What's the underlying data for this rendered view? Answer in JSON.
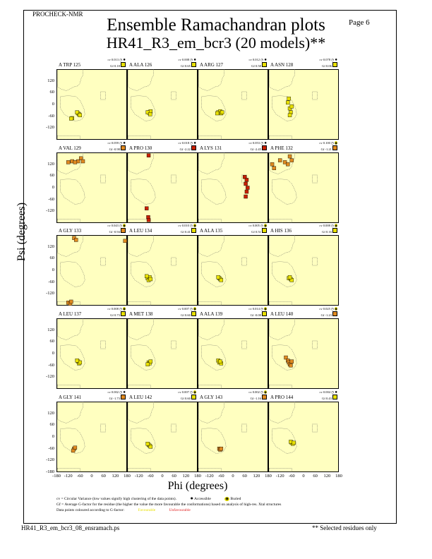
{
  "header": {
    "program": "PROCHECK-NMR",
    "page": "Page  6",
    "title": "Ensemble Ramachandran plots",
    "subtitle": "HR41_R3_em_bcr3 (20 models)**"
  },
  "axes": {
    "xlabel": "Phi (degrees)",
    "ylabel": "Psi (degrees)",
    "xticks": [
      "-180",
      "-120",
      "-60",
      "0",
      "60",
      "120",
      "180"
    ],
    "yticks": [
      "120",
      "60",
      "0",
      "-60",
      "-120"
    ],
    "ybottom": "-180"
  },
  "colors": {
    "background": "#ffffc0",
    "favourable": "#e8e000",
    "moderate": "#e08a20",
    "unfavourable": "#c82000"
  },
  "panels": [
    {
      "label": "A TRP 125",
      "cv": "cv 0.013",
      "gf": "Gf 0.18",
      "access": "accessible",
      "pts": [
        [
          -70,
          -45
        ],
        [
          -65,
          -50
        ],
        [
          -75,
          -40
        ],
        [
          -60,
          -55
        ],
        [
          -100,
          -70
        ],
        [
          -105,
          -72
        ]
      ]
    },
    {
      "label": "A ALA 126",
      "cv": "cv 0.008",
      "gf": "Gf 0.65",
      "access": "accessible",
      "pts": [
        [
          -70,
          -40
        ],
        [
          -65,
          -45
        ],
        [
          -60,
          -35
        ],
        [
          -75,
          -40
        ],
        [
          -62,
          -50
        ]
      ]
    },
    {
      "label": "A ARG 127",
      "cv": "cv 0.012",
      "gf": "Gf 0.58",
      "access": "accessible",
      "pts": [
        [
          -75,
          -40
        ],
        [
          -65,
          -35
        ],
        [
          -60,
          -45
        ],
        [
          -80,
          -45
        ],
        [
          -55,
          -40
        ]
      ]
    },
    {
      "label": "A ASN 128",
      "cv": "cv 0.078",
      "gf": "Gf 0.06",
      "access": "accessible",
      "pts": [
        [
          -75,
          30
        ],
        [
          -80,
          10
        ],
        [
          -70,
          -20
        ],
        [
          -65,
          -40
        ],
        [
          -70,
          -55
        ],
        [
          -60,
          -10
        ]
      ]
    },
    {
      "label": "A VAL 129",
      "cv": "cv 0.059",
      "gf": "Gf -0.98",
      "access": "accessible",
      "pts": [
        [
          -120,
          130
        ],
        [
          -100,
          135
        ],
        [
          -70,
          135
        ],
        [
          -55,
          150
        ],
        [
          -45,
          135
        ],
        [
          -85,
          130
        ]
      ]
    },
    {
      "label": "A PRO 130",
      "cv": "cv 0.018",
      "gf": "Gf -2.22",
      "access": "accessible",
      "pts": [
        [
          -70,
          165
        ],
        [
          -80,
          -105
        ],
        [
          -72,
          -150
        ],
        [
          -70,
          -165
        ]
      ]
    },
    {
      "label": "A LYS 131",
      "cv": "cv 0.053",
      "gf": "Gf -2.45",
      "access": "accessible",
      "pts": [
        [
          60,
          55
        ],
        [
          70,
          40
        ],
        [
          65,
          20
        ],
        [
          75,
          0
        ],
        [
          70,
          -20
        ],
        [
          65,
          -45
        ]
      ]
    },
    {
      "label": "A PHE 132",
      "cv": "cv 0.100",
      "gf": "Gf -1.21",
      "access": "buried",
      "pts": [
        [
          -160,
          120
        ],
        [
          -150,
          100
        ],
        [
          -120,
          140
        ],
        [
          -95,
          130
        ],
        [
          -80,
          120
        ],
        [
          -70,
          160
        ],
        [
          -60,
          140
        ]
      ]
    },
    {
      "label": "A GLY 133",
      "cv": "cv 0.043",
      "gf": "Gf -0.94",
      "access": "buried",
      "pts": [
        [
          -90,
          165
        ],
        [
          -80,
          155
        ],
        [
          170,
          150
        ],
        [
          -120,
          -165
        ],
        [
          -110,
          -170
        ],
        [
          -105,
          -160
        ]
      ]
    },
    {
      "label": "A LEU 134",
      "cv": "cv 0.010",
      "gf": "Gf 0.41",
      "access": "buried",
      "pts": [
        [
          -75,
          -40
        ],
        [
          -70,
          -50
        ],
        [
          -65,
          -35
        ],
        [
          -60,
          -45
        ],
        [
          -80,
          -30
        ]
      ]
    },
    {
      "label": "A ALA 135",
      "cv": "cv 0.005",
      "gf": "Gf 0.51",
      "access": "buried",
      "pts": [
        [
          -70,
          -40
        ],
        [
          -65,
          -45
        ],
        [
          -60,
          -50
        ],
        [
          -75,
          -35
        ]
      ]
    },
    {
      "label": "A HIS 136",
      "cv": "cv 0.008",
      "gf": "Gf 0.16",
      "access": "buried",
      "pts": [
        [
          -75,
          -40
        ],
        [
          -65,
          -45
        ],
        [
          -60,
          -50
        ],
        [
          -70,
          -35
        ]
      ]
    },
    {
      "label": "A LEU 137",
      "cv": "cv 0.008",
      "gf": "Gf 0.73",
      "access": "buried",
      "pts": [
        [
          -70,
          -40
        ],
        [
          -65,
          -50
        ],
        [
          -60,
          -45
        ],
        [
          -75,
          -35
        ]
      ]
    },
    {
      "label": "A MET 138",
      "cv": "cv 0.007",
      "gf": "Gf 0.60",
      "access": "buried",
      "pts": [
        [
          -70,
          -45
        ],
        [
          -65,
          -50
        ],
        [
          -60,
          -40
        ],
        [
          -75,
          -55
        ]
      ]
    },
    {
      "label": "A ALA 139",
      "cv": "cv 0.014",
      "gf": "Gf -0.08",
      "access": "buried",
      "pts": [
        [
          -75,
          -35
        ],
        [
          -70,
          -45
        ],
        [
          -60,
          -50
        ],
        [
          -65,
          -40
        ]
      ]
    },
    {
      "label": "A LEU 140",
      "cv": "cv 0.025",
      "gf": "Gf -1.23",
      "access": "buried",
      "pts": [
        [
          -90,
          -20
        ],
        [
          -80,
          -35
        ],
        [
          -75,
          -45
        ],
        [
          -70,
          -55
        ],
        [
          -65,
          -60
        ],
        [
          -60,
          -40
        ]
      ]
    },
    {
      "label": "A GLY 141",
      "cv": "cv 0.002",
      "gf": "Gf -1.73",
      "access": "accessible",
      "pts": [
        [
          -90,
          -60
        ],
        [
          -95,
          -70
        ],
        [
          -85,
          -55
        ]
      ]
    },
    {
      "label": "A LEU 142",
      "cv": "cv 0.007",
      "gf": "Gf 0.60",
      "access": "buried",
      "pts": [
        [
          -70,
          -40
        ],
        [
          -65,
          -45
        ],
        [
          -60,
          -50
        ],
        [
          -75,
          -35
        ]
      ]
    },
    {
      "label": "A GLY 143",
      "cv": "cv 0.002",
      "gf": "Gf -1.16",
      "access": "buried",
      "pts": [
        [
          -70,
          -60
        ],
        [
          -65,
          -65
        ],
        [
          -60,
          -60
        ]
      ]
    },
    {
      "label": "A PRO 144",
      "cv": "cv 0.004",
      "gf": "Gf 0.43",
      "access": "accessible",
      "pts": [
        [
          -60,
          -30
        ],
        [
          -55,
          -35
        ],
        [
          -65,
          -25
        ],
        [
          -50,
          -30
        ]
      ]
    }
  ],
  "legend": {
    "line1": "cv = Circular Variance (low values signify high clustering of the data points).",
    "accessible": "Accessible",
    "buried": "Buried",
    "line2": "Gf = Average G-factor for the residue (the higher the value the more favourable the conformations) based on analysis of high-res. Xtal structures",
    "line3": "Data points coloured according to G-factor:",
    "favourable": "Favourable",
    "unfavourable": "Unfavourable"
  },
  "footer": {
    "file": "HR41_R3_em_bcr3_08_ensramach.ps",
    "note": "** Selected residues only"
  }
}
